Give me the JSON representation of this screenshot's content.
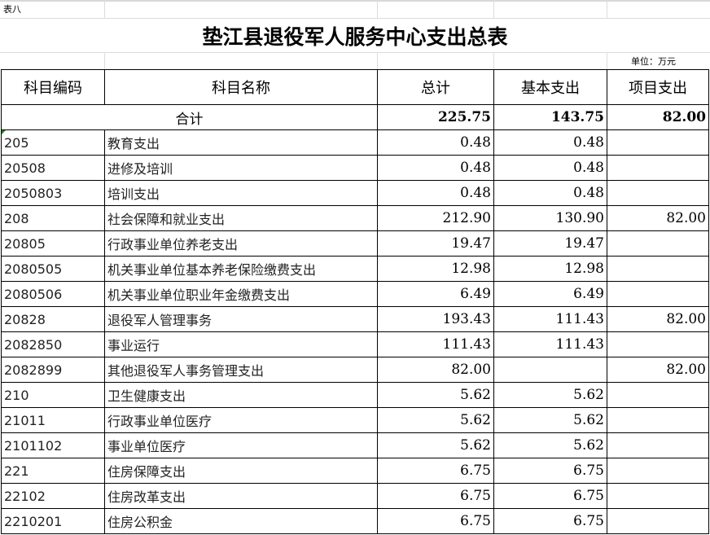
{
  "sheet_label": "表八",
  "title": "垫江县退役军人服务中心支出总表",
  "unit": "单位：万元",
  "headers": [
    "科目编码",
    "科目名称",
    "总计",
    "基本支出",
    "项目支出"
  ],
  "total": {
    "label": "合计",
    "total": "225.75",
    "basic": "143.75",
    "project": "82.00"
  },
  "rows": [
    {
      "code": "205",
      "name": "教育支出",
      "total": "0.48",
      "basic": "0.48",
      "project": ""
    },
    {
      "code": "20508",
      "name": "进修及培训",
      "total": "0.48",
      "basic": "0.48",
      "project": ""
    },
    {
      "code": "2050803",
      "name": "培训支出",
      "total": "0.48",
      "basic": "0.48",
      "project": ""
    },
    {
      "code": "208",
      "name": "社会保障和就业支出",
      "total": "212.90",
      "basic": "130.90",
      "project": "82.00"
    },
    {
      "code": "20805",
      "name": "行政事业单位养老支出",
      "total": "19.47",
      "basic": "19.47",
      "project": ""
    },
    {
      "code": "2080505",
      "name": "机关事业单位基本养老保险缴费支出",
      "total": "12.98",
      "basic": "12.98",
      "project": ""
    },
    {
      "code": "2080506",
      "name": "机关事业单位职业年金缴费支出",
      "total": "6.49",
      "basic": "6.49",
      "project": ""
    },
    {
      "code": "20828",
      "name": "退役军人管理事务",
      "total": "193.43",
      "basic": "111.43",
      "project": "82.00"
    },
    {
      "code": "2082850",
      "name": "事业运行",
      "total": "111.43",
      "basic": "111.43",
      "project": ""
    },
    {
      "code": "2082899",
      "name": "其他退役军人事务管理支出",
      "total": "82.00",
      "basic": "",
      "project": "82.00"
    },
    {
      "code": "210",
      "name": "卫生健康支出",
      "total": "5.62",
      "basic": "5.62",
      "project": ""
    },
    {
      "code": "21011",
      "name": "行政事业单位医疗",
      "total": "5.62",
      "basic": "5.62",
      "project": ""
    },
    {
      "code": "2101102",
      "name": "事业单位医疗",
      "total": "5.62",
      "basic": "5.62",
      "project": ""
    },
    {
      "code": "221",
      "name": "住房保障支出",
      "total": "6.75",
      "basic": "6.75",
      "project": ""
    },
    {
      "code": "22102",
      "name": "住房改革支出",
      "total": "6.75",
      "basic": "6.75",
      "project": ""
    },
    {
      "code": "2210201",
      "name": "住房公积金",
      "total": "6.75",
      "basic": "6.75",
      "project": ""
    }
  ]
}
